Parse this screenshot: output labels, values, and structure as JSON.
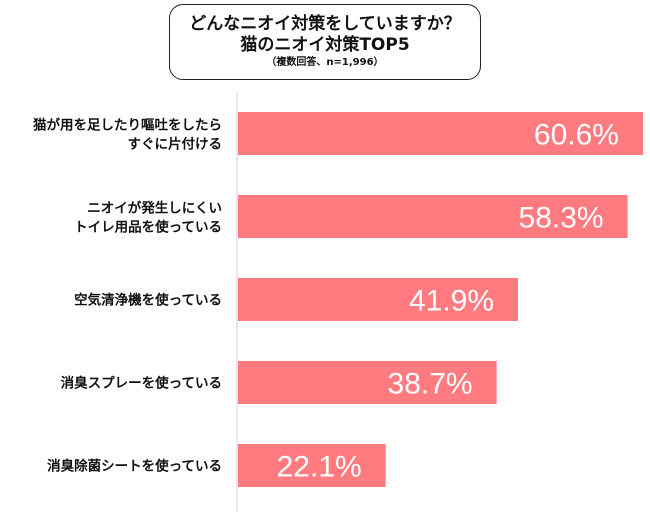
{
  "chart_data": {
    "type": "bar",
    "orientation": "horizontal",
    "title": "どんなニオイ対策をしていますか？",
    "subtitle": "猫のニオイ対策TOP5",
    "note": "（複数回答、n=1,996）",
    "categories": [
      [
        "猫が用を足したり嘔吐をしたら",
        "すぐに片付ける"
      ],
      [
        "ニオイが発生しにくい",
        "トイレ用品を使っている"
      ],
      [
        "空気清浄機を使っている"
      ],
      [
        "消臭スプレーを使っている"
      ],
      [
        "消臭除菌シートを使っている"
      ]
    ],
    "values": [
      60.6,
      58.3,
      41.9,
      38.7,
      22.1
    ],
    "value_labels": [
      "60.6%",
      "58.3%",
      "41.9%",
      "38.7%",
      "22.1%"
    ],
    "xlim": [
      0,
      61
    ],
    "grid": false,
    "bar_color": "#ff7b80"
  }
}
